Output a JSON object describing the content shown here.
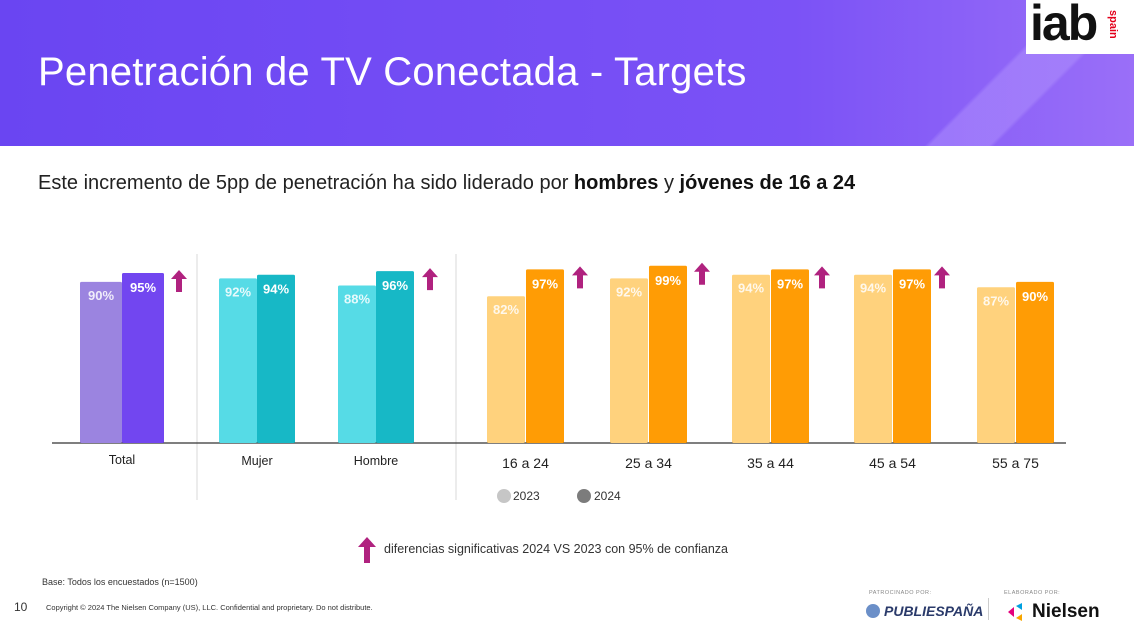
{
  "header": {
    "title": "Penetración de TV Conectada - Targets",
    "logo_text": "iab",
    "logo_sub": "spain"
  },
  "subtitle": {
    "prefix": "Este incremento de 5pp de penetración ha sido liderado por ",
    "bold1": "hombres",
    "mid": " y ",
    "bold2": "jóvenes de 16 a 24"
  },
  "chart_data": {
    "type": "bar",
    "categories": [
      "Total",
      "Mujer",
      "Hombre",
      "16 a 24",
      "25 a 34",
      "35 a 44",
      "45 a 54",
      "55 a 75"
    ],
    "series": [
      {
        "name": "2023",
        "values": [
          90,
          92,
          88,
          82,
          92,
          94,
          94,
          87
        ],
        "labels": [
          "90%",
          "92%",
          "88%",
          "82%",
          "92%",
          "94%",
          "94%",
          "87%"
        ]
      },
      {
        "name": "2024",
        "values": [
          95,
          94,
          96,
          97,
          99,
          97,
          97,
          90
        ],
        "labels": [
          "95%",
          "94%",
          "96%",
          "97%",
          "99%",
          "97%",
          "97%",
          "90%"
        ]
      }
    ],
    "significant": [
      true,
      false,
      true,
      true,
      true,
      true,
      true,
      false
    ],
    "colors": {
      "total_2023": "#9b84e0",
      "total_2024": "#7246f0",
      "gender_2023": "#56dbe6",
      "gender_2024": "#17b8c6",
      "age_2023": "#ffd27d",
      "age_2024": "#ff9c05",
      "arrow": "#b0227f",
      "legend_2023": "#c6c6c6",
      "legend_2024": "#7c7c7c"
    },
    "legend_placement": "bottom"
  },
  "note": "diferencias significativas 2024 VS 2023 con 95% de confianza",
  "base": "Base: Todos los encuestados (n=1500)",
  "page_number": "10",
  "copyright": "Copyright © 2024 The Nielsen Company (US), LLC. Confidential and proprietary. Do not distribute.",
  "footer": {
    "sponsored_label": "PATROCINADO POR:",
    "sponsor": "PUBLIESPAÑA",
    "made_label": "ELABORADO POR:",
    "maker": "Nielsen"
  }
}
